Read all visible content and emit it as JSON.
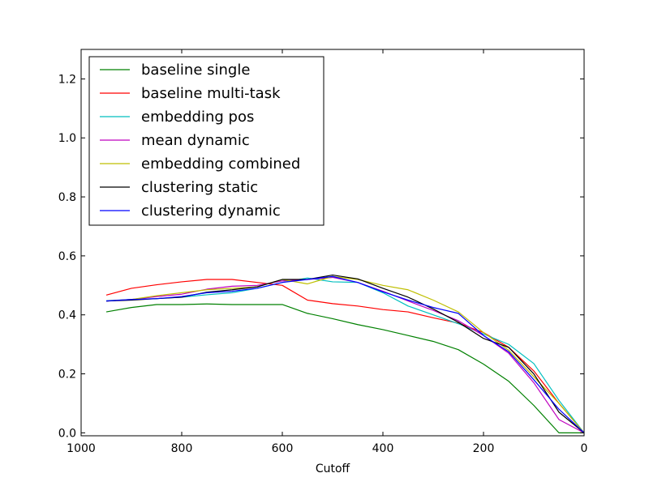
{
  "chart_data": {
    "type": "line",
    "xlabel": "Cutoff",
    "ylabel": "",
    "xlim": [
      1000,
      0
    ],
    "ylim": [
      -0.01,
      1.3
    ],
    "xticks": [
      1000,
      800,
      600,
      400,
      200,
      0
    ],
    "yticks": [
      0.0,
      0.2,
      0.4,
      0.6,
      0.8,
      1.0,
      1.2
    ],
    "ytick_labels": [
      "0.0",
      "0.2",
      "0.4",
      "0.6",
      "0.8",
      "1.0",
      "1.2"
    ],
    "legend_position": "upper-left",
    "x": [
      950,
      900,
      850,
      800,
      750,
      700,
      650,
      600,
      550,
      500,
      450,
      400,
      350,
      300,
      250,
      200,
      150,
      100,
      50,
      0
    ],
    "series": [
      {
        "name": "baseline single",
        "color": "#008000",
        "values": [
          0.41,
          0.425,
          0.435,
          0.435,
          0.437,
          0.435,
          0.435,
          0.435,
          0.405,
          0.387,
          0.367,
          0.35,
          0.33,
          0.31,
          0.282,
          0.233,
          0.175,
          0.093,
          0.0,
          0.0
        ]
      },
      {
        "name": "baseline multi-task",
        "color": "#ff0000",
        "values": [
          0.467,
          0.49,
          0.502,
          0.512,
          0.52,
          0.52,
          0.51,
          0.5,
          0.45,
          0.438,
          0.43,
          0.418,
          0.41,
          0.39,
          0.372,
          0.34,
          0.29,
          0.21,
          0.1,
          0.0
        ]
      },
      {
        "name": "embedding pos",
        "color": "#00bfbf",
        "values": [
          0.448,
          0.452,
          0.455,
          0.46,
          0.468,
          0.475,
          0.49,
          0.51,
          0.525,
          0.512,
          0.51,
          0.475,
          0.43,
          0.4,
          0.37,
          0.335,
          0.3,
          0.235,
          0.11,
          0.0
        ]
      },
      {
        "name": "mean dynamic",
        "color": "#bf00bf",
        "values": [
          0.447,
          0.452,
          0.462,
          0.47,
          0.487,
          0.497,
          0.5,
          0.515,
          0.52,
          0.527,
          0.51,
          0.48,
          0.447,
          0.415,
          0.38,
          0.33,
          0.27,
          0.17,
          0.045,
          0.0
        ]
      },
      {
        "name": "embedding combined",
        "color": "#bfbf00",
        "values": [
          0.447,
          0.452,
          0.465,
          0.475,
          0.485,
          0.49,
          0.495,
          0.52,
          0.505,
          0.53,
          0.52,
          0.5,
          0.485,
          0.45,
          0.41,
          0.34,
          0.28,
          0.19,
          0.1,
          0.0
        ]
      },
      {
        "name": "clustering static",
        "color": "#000000",
        "values": [
          0.447,
          0.45,
          0.455,
          0.46,
          0.477,
          0.485,
          0.495,
          0.52,
          0.52,
          0.535,
          0.522,
          0.49,
          0.46,
          0.42,
          0.375,
          0.32,
          0.29,
          0.2,
          0.07,
          0.0
        ]
      },
      {
        "name": "clustering dynamic",
        "color": "#0000ff",
        "values": [
          0.447,
          0.452,
          0.455,
          0.462,
          0.475,
          0.48,
          0.49,
          0.51,
          0.52,
          0.53,
          0.51,
          0.478,
          0.45,
          0.425,
          0.405,
          0.33,
          0.275,
          0.18,
          0.08,
          0.0
        ]
      }
    ]
  }
}
